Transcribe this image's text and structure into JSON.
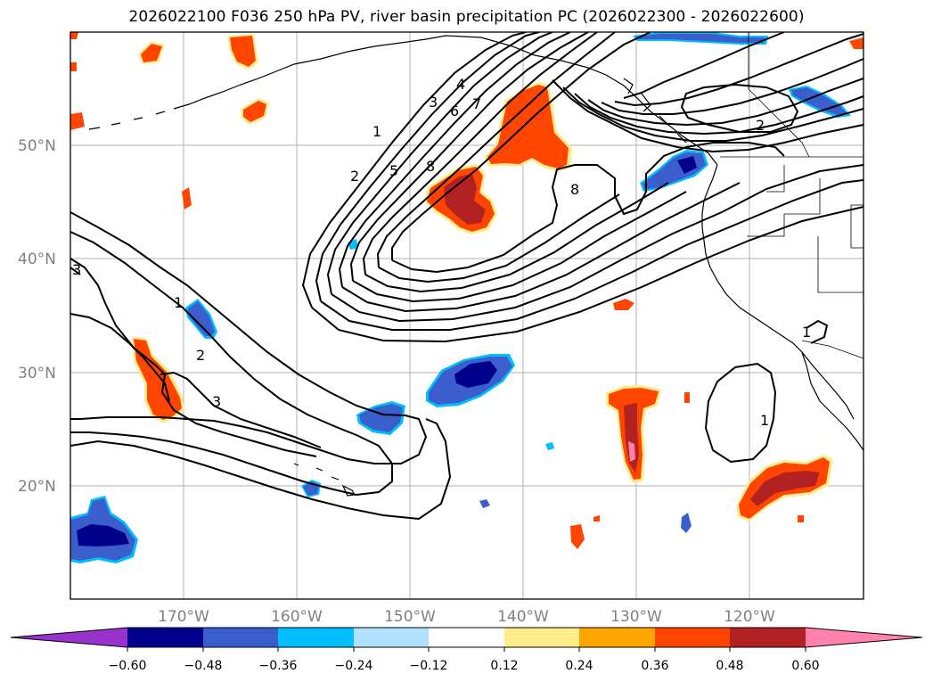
{
  "title": "2026022100 F036 250 hPa PV, river basin precipitation PC (2026022300 - 2026022600)",
  "latitude_labels": [
    "50°N",
    "40°N",
    "30°N",
    "20°N"
  ],
  "longitude_labels": [
    "170°W",
    "160°W",
    "150°W",
    "140°W",
    "130°W",
    "120°W"
  ],
  "colorbar": {
    "tick_labels": [
      "−0.60",
      "−0.48",
      "−0.36",
      "−0.24",
      "−0.12",
      "0.12",
      "0.24",
      "0.36",
      "0.48",
      "0.60"
    ],
    "colors": [
      "#9932cc",
      "#00008b",
      "#3a5fcd",
      "#00bfff",
      "#b0e2ff",
      "#ffffff",
      "#ffec8b",
      "#ffa500",
      "#ff4500",
      "#b22222",
      "#ff82ab"
    ]
  },
  "pv_contour_labels": [
    "1",
    "2",
    "3",
    "4",
    "5",
    "6",
    "7",
    "8",
    "8",
    "2",
    "1",
    "2",
    "3",
    "1",
    "1",
    "3"
  ],
  "colors": {
    "map_border": "#000000",
    "gridline": "#b0b0b0",
    "contour": "#000000",
    "tick_label": "#808080"
  }
}
